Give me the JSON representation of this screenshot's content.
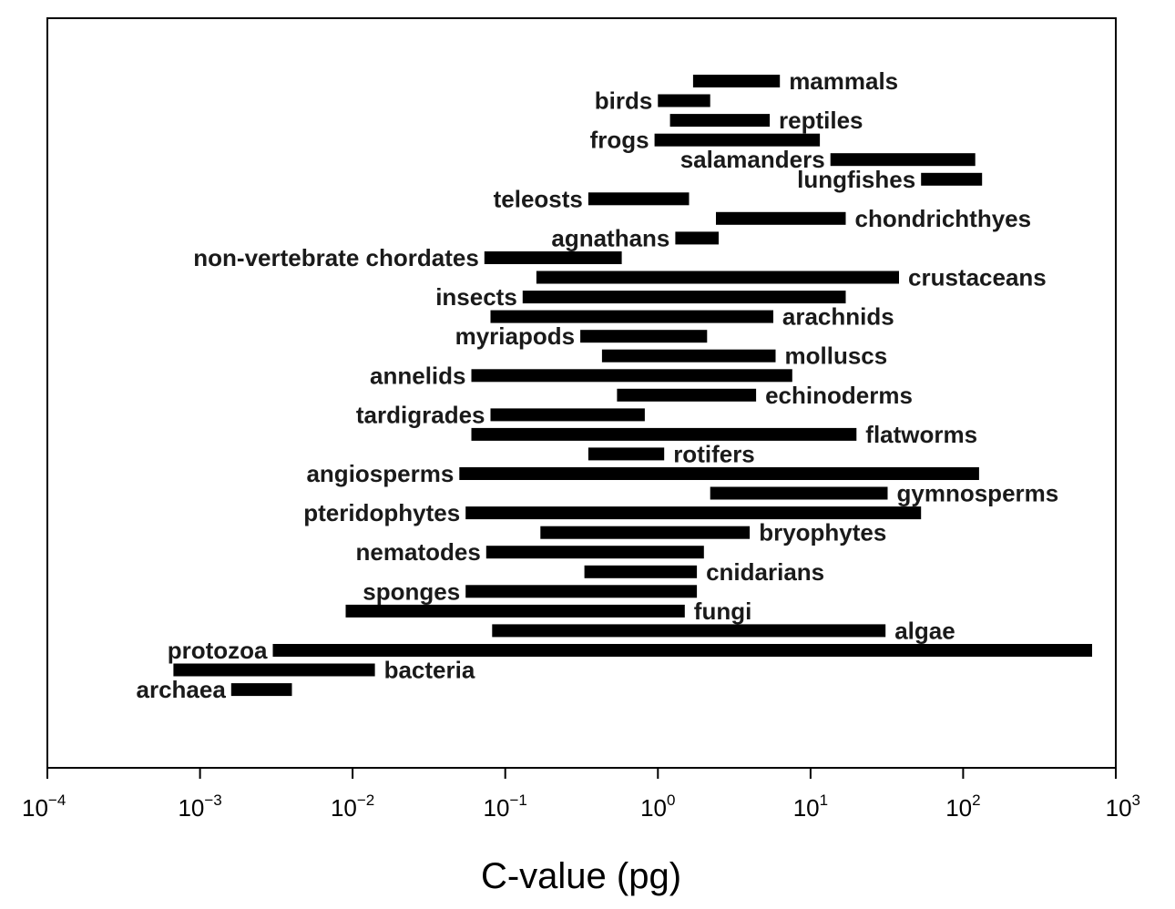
{
  "chart_data": {
    "type": "bar",
    "orientation": "horizontal-range",
    "xscale": "log",
    "xlim": [
      0.0001,
      1000
    ],
    "xlabel": "C-value (pg)",
    "ticks": [
      {
        "base": "10",
        "exp": "-4",
        "value": 0.0001
      },
      {
        "base": "10",
        "exp": "-3",
        "value": 0.001
      },
      {
        "base": "10",
        "exp": "-2",
        "value": 0.01
      },
      {
        "base": "10",
        "exp": "-1",
        "value": 0.1
      },
      {
        "base": "10",
        "exp": "0",
        "value": 1
      },
      {
        "base": "10",
        "exp": "1",
        "value": 10
      },
      {
        "base": "10",
        "exp": "2",
        "value": 100
      },
      {
        "base": "10",
        "exp": "3",
        "value": 1000
      }
    ],
    "grid": false,
    "legend": "none",
    "bar_color": "#000000",
    "series": [
      {
        "name": "mammals",
        "min": 1.7,
        "max": 6.3,
        "label_side": "right"
      },
      {
        "name": "birds",
        "min": 1.0,
        "max": 2.2,
        "label_side": "left"
      },
      {
        "name": "reptiles",
        "min": 1.2,
        "max": 5.4,
        "label_side": "right"
      },
      {
        "name": "frogs",
        "min": 0.95,
        "max": 11.5,
        "label_side": "left"
      },
      {
        "name": "salamanders",
        "min": 13.5,
        "max": 120,
        "label_side": "left"
      },
      {
        "name": "lungfishes",
        "min": 53,
        "max": 133,
        "label_side": "left"
      },
      {
        "name": "teleosts",
        "min": 0.35,
        "max": 1.6,
        "label_side": "left"
      },
      {
        "name": "chondrichthyes",
        "min": 2.4,
        "max": 17,
        "label_side": "right"
      },
      {
        "name": "agnathans",
        "min": 1.3,
        "max": 2.5,
        "label_side": "left"
      },
      {
        "name": "non-vertebrate chordates",
        "min": 0.073,
        "max": 0.58,
        "label_side": "left"
      },
      {
        "name": "crustaceans",
        "min": 0.16,
        "max": 38,
        "label_side": "right"
      },
      {
        "name": "insects",
        "min": 0.13,
        "max": 17,
        "label_side": "left"
      },
      {
        "name": "arachnids",
        "min": 0.08,
        "max": 5.7,
        "label_side": "right"
      },
      {
        "name": "myriapods",
        "min": 0.31,
        "max": 2.1,
        "label_side": "left"
      },
      {
        "name": "molluscs",
        "min": 0.43,
        "max": 5.9,
        "label_side": "right"
      },
      {
        "name": "annelids",
        "min": 0.06,
        "max": 7.6,
        "label_side": "left"
      },
      {
        "name": "echinoderms",
        "min": 0.54,
        "max": 4.4,
        "label_side": "right"
      },
      {
        "name": "tardigrades",
        "min": 0.08,
        "max": 0.82,
        "label_side": "left"
      },
      {
        "name": "flatworms",
        "min": 0.06,
        "max": 20,
        "label_side": "right"
      },
      {
        "name": "rotifers",
        "min": 0.35,
        "max": 1.1,
        "label_side": "right"
      },
      {
        "name": "angiosperms",
        "min": 0.05,
        "max": 127,
        "label_side": "left"
      },
      {
        "name": "gymnosperms",
        "min": 2.2,
        "max": 32,
        "label_side": "right"
      },
      {
        "name": "pteridophytes",
        "min": 0.055,
        "max": 53,
        "label_side": "left"
      },
      {
        "name": "bryophytes",
        "min": 0.17,
        "max": 4.0,
        "label_side": "right"
      },
      {
        "name": "nematodes",
        "min": 0.075,
        "max": 2.0,
        "label_side": "left"
      },
      {
        "name": "cnidarians",
        "min": 0.33,
        "max": 1.8,
        "label_side": "right"
      },
      {
        "name": "sponges",
        "min": 0.055,
        "max": 1.8,
        "label_side": "left"
      },
      {
        "name": "fungi",
        "min": 0.009,
        "max": 1.5,
        "label_side": "right"
      },
      {
        "name": "algae",
        "min": 0.082,
        "max": 31,
        "label_side": "right"
      },
      {
        "name": "protozoa",
        "min": 0.003,
        "max": 700,
        "label_side": "left"
      },
      {
        "name": "bacteria",
        "min": 0.00067,
        "max": 0.014,
        "label_side": "right"
      },
      {
        "name": "archaea",
        "min": 0.0016,
        "max": 0.004,
        "label_side": "left"
      }
    ]
  }
}
